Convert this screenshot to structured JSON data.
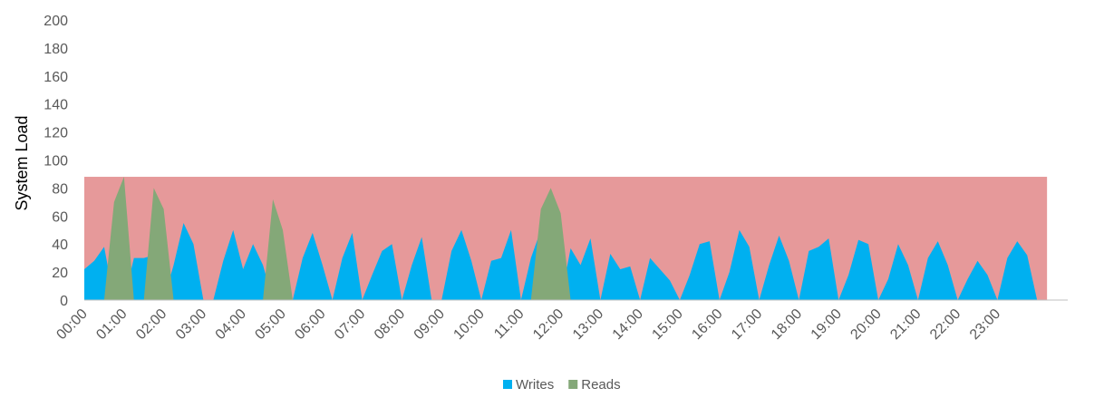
{
  "chart_data": {
    "type": "area",
    "y_label": "System Load",
    "categories": [
      "00:00",
      null,
      null,
      null,
      "01:00",
      null,
      null,
      null,
      "02:00",
      null,
      null,
      null,
      "03:00",
      null,
      null,
      null,
      "04:00",
      null,
      null,
      null,
      "05:00",
      null,
      null,
      null,
      "06:00",
      null,
      null,
      null,
      "07:00",
      null,
      null,
      null,
      "08:00",
      null,
      null,
      null,
      "09:00",
      null,
      null,
      null,
      "10:00",
      null,
      null,
      null,
      "11:00",
      null,
      null,
      null,
      "12:00",
      null,
      null,
      null,
      "13:00",
      null,
      null,
      null,
      "14:00",
      null,
      null,
      null,
      "15:00",
      null,
      null,
      null,
      "16:00",
      null,
      null,
      null,
      "17:00",
      null,
      null,
      null,
      "18:00",
      null,
      null,
      null,
      "19:00",
      null,
      null,
      null,
      "20:00",
      null,
      null,
      null,
      "21:00",
      null,
      null,
      null,
      "22:00",
      null,
      null,
      null,
      "23:00",
      null,
      null,
      null,
      null,
      null
    ],
    "threshold": {
      "value": 88,
      "color": "#e6999a"
    },
    "series": [
      {
        "name": "Writes",
        "color": "#00b0f0",
        "values": [
          22,
          28,
          38,
          0,
          0,
          30,
          30,
          32,
          0,
          25,
          55,
          40,
          0,
          0,
          28,
          50,
          22,
          40,
          25,
          0,
          0,
          0,
          30,
          48,
          25,
          0,
          30,
          48,
          0,
          18,
          35,
          40,
          0,
          25,
          45,
          0,
          0,
          35,
          50,
          28,
          0,
          28,
          30,
          50,
          0,
          30,
          50,
          0,
          0,
          37,
          25,
          44,
          0,
          33,
          22,
          24,
          0,
          30,
          22,
          14,
          0,
          18,
          40,
          42,
          0,
          20,
          50,
          38,
          0,
          25,
          46,
          28,
          0,
          35,
          38,
          44,
          0,
          18,
          43,
          40,
          0,
          15,
          40,
          25,
          0,
          30,
          42,
          25,
          0,
          15,
          28,
          18,
          0,
          30,
          42,
          32,
          0,
          0
        ]
      },
      {
        "name": "Reads",
        "color": "#84a878",
        "values": [
          0,
          0,
          0,
          70,
          88,
          0,
          0,
          80,
          65,
          0,
          0,
          0,
          0,
          0,
          0,
          0,
          0,
          0,
          0,
          72,
          50,
          0,
          0,
          0,
          0,
          0,
          0,
          0,
          0,
          0,
          0,
          0,
          0,
          0,
          0,
          0,
          0,
          0,
          0,
          0,
          0,
          0,
          0,
          0,
          0,
          0,
          65,
          80,
          62,
          0,
          0,
          0,
          0,
          0,
          0,
          0,
          0,
          0,
          0,
          0,
          0,
          0,
          0,
          0,
          0,
          0,
          0,
          0,
          0,
          0,
          0,
          0,
          0,
          0,
          0,
          0,
          0,
          0,
          0,
          0,
          0,
          0,
          0,
          0,
          0,
          0,
          0,
          0,
          0,
          0,
          0,
          0,
          0,
          0,
          0,
          0,
          0,
          0
        ]
      }
    ],
    "ylim": [
      0,
      200
    ],
    "yticks": [
      0,
      20,
      40,
      60,
      80,
      100,
      120,
      140,
      160,
      180,
      200
    ]
  }
}
